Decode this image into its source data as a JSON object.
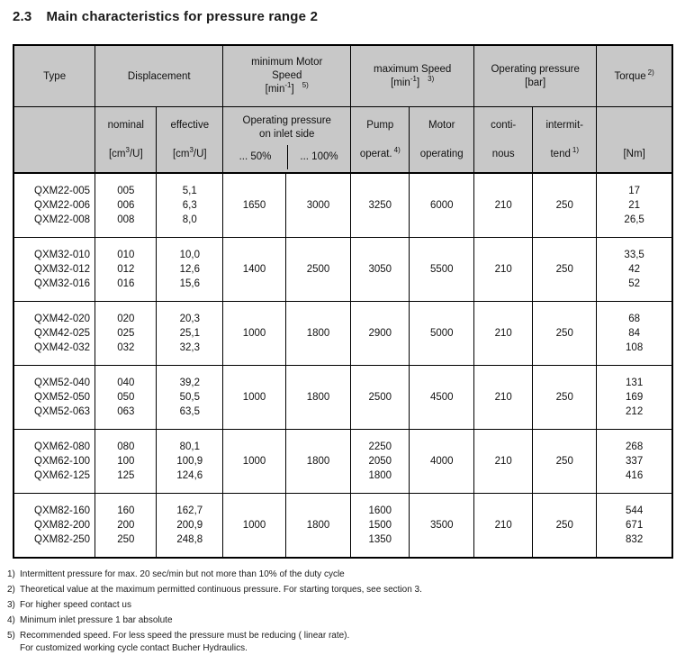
{
  "colors": {
    "header_bg": "#c8c8c8",
    "border": "#000000",
    "page_bg": "#ffffff",
    "text": "#1a1a1a"
  },
  "page": {
    "title_number": "2.3",
    "title_text": "Main characteristics for pressure range 2"
  },
  "table": {
    "header": {
      "type": "Type",
      "displacement": "Displacement",
      "min_motor_speed": {
        "line1": "minimum Motor",
        "line2": "Speed",
        "unit_open": "[min",
        "unit_exp": "-1",
        "unit_close": "]",
        "ref": "5)"
      },
      "max_speed": {
        "line1": "maximum Speed",
        "unit_open": "[min",
        "unit_exp": "-1",
        "unit_close": "]",
        "ref": "3)"
      },
      "operating_pressure": {
        "line1": "Operating pressure",
        "line2": "[bar]"
      },
      "torque": {
        "label": "Torque",
        "ref": "2)"
      },
      "nominal": {
        "label": "nominal",
        "unit_open": "[cm",
        "unit_exp": "3",
        "unit_close": "/U]"
      },
      "effective": {
        "label": "effective",
        "unit_open": "[cm",
        "unit_exp": "3",
        "unit_close": "/U]"
      },
      "inlet": {
        "line1": "Operating pressure",
        "line2": "on inlet side",
        "col50": "... 50%",
        "col100": "... 100%"
      },
      "pump": {
        "line1": "Pump",
        "line2": "operat.",
        "ref": "4)"
      },
      "motor": {
        "line1": "Motor",
        "line2": "operating"
      },
      "continuous": {
        "line1": "conti-",
        "line2": "nous"
      },
      "intermittent": {
        "line1": "intermit-",
        "line2": "tend",
        "ref": "1)"
      },
      "nm": "[Nm]"
    },
    "groups": [
      {
        "types": [
          "QXM22-005",
          "QXM22-006",
          "QXM22-008"
        ],
        "nominal": [
          "005",
          "006",
          "008"
        ],
        "effective": [
          "5,1",
          "6,3",
          "8,0"
        ],
        "min_speed_50": "1650",
        "min_speed_100": "3000",
        "pump": [
          "3250"
        ],
        "motor": "6000",
        "continuous": "210",
        "intermittent": "250",
        "torque": [
          "17",
          "21",
          "26,5"
        ]
      },
      {
        "types": [
          "QXM32-010",
          "QXM32-012",
          "QXM32-016"
        ],
        "nominal": [
          "010",
          "012",
          "016"
        ],
        "effective": [
          "10,0",
          "12,6",
          "15,6"
        ],
        "min_speed_50": "1400",
        "min_speed_100": "2500",
        "pump": [
          "3050"
        ],
        "motor": "5500",
        "continuous": "210",
        "intermittent": "250",
        "torque": [
          "33,5",
          "42",
          "52"
        ]
      },
      {
        "types": [
          "QXM42-020",
          "QXM42-025",
          "QXM42-032"
        ],
        "nominal": [
          "020",
          "025",
          "032"
        ],
        "effective": [
          "20,3",
          "25,1",
          "32,3"
        ],
        "min_speed_50": "1000",
        "min_speed_100": "1800",
        "pump": [
          "2900"
        ],
        "motor": "5000",
        "continuous": "210",
        "intermittent": "250",
        "torque": [
          "68",
          "84",
          "108"
        ]
      },
      {
        "types": [
          "QXM52-040",
          "QXM52-050",
          "QXM52-063"
        ],
        "nominal": [
          "040",
          "050",
          "063"
        ],
        "effective": [
          "39,2",
          "50,5",
          "63,5"
        ],
        "min_speed_50": "1000",
        "min_speed_100": "1800",
        "pump": [
          "2500"
        ],
        "motor": "4500",
        "continuous": "210",
        "intermittent": "250",
        "torque": [
          "131",
          "169",
          "212"
        ]
      },
      {
        "types": [
          "QXM62-080",
          "QXM62-100",
          "QXM62-125"
        ],
        "nominal": [
          "080",
          "100",
          "125"
        ],
        "effective": [
          "80,1",
          "100,9",
          "124,6"
        ],
        "min_speed_50": "1000",
        "min_speed_100": "1800",
        "pump": [
          "2250",
          "2050",
          "1800"
        ],
        "motor": "4000",
        "continuous": "210",
        "intermittent": "250",
        "torque": [
          "268",
          "337",
          "416"
        ]
      },
      {
        "types": [
          "QXM82-160",
          "QXM82-200",
          "QXM82-250"
        ],
        "nominal": [
          "160",
          "200",
          "250"
        ],
        "effective": [
          "162,7",
          "200,9",
          "248,8"
        ],
        "min_speed_50": "1000",
        "min_speed_100": "1800",
        "pump": [
          "1600",
          "1500",
          "1350"
        ],
        "motor": "3500",
        "continuous": "210",
        "intermittent": "250",
        "torque": [
          "544",
          "671",
          "832"
        ]
      }
    ],
    "footnotes": [
      {
        "ref": "1)",
        "text": "Intermittent pressure for max. 20 sec/min but not more than 10% of the duty cycle"
      },
      {
        "ref": "2)",
        "text": "Theoretical value at the maximum permitted continuous pressure. For starting torques, see section 3."
      },
      {
        "ref": "3)",
        "text": "For higher speed contact us"
      },
      {
        "ref": "4)",
        "text": "Minimum inlet pressure 1 bar absolute"
      },
      {
        "ref": "5)",
        "text": "Recommended speed. For less speed the pressure must be reducing ( linear rate)."
      },
      {
        "ref": "",
        "text": "For customized working cycle contact Bucher Hydraulics."
      }
    ]
  }
}
